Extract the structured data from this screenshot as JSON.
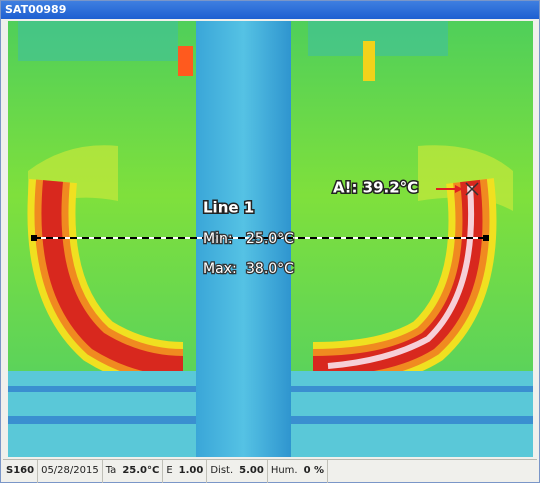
{
  "window": {
    "title": "SAT00989"
  },
  "overlay": {
    "line_label": "Line 1",
    "min_label": "Min:",
    "min_value": "25.0°C",
    "max_label": "Max:",
    "max_value": "38.0°C",
    "spot_label": "A!: 39.2°C"
  },
  "status_bar": {
    "model": "S160",
    "date": "05/28/2015",
    "ta_label": "Ta",
    "ta_value": "25.0°C",
    "e_label": "E",
    "e_value": "1.00",
    "dist_label": "Dist.",
    "dist_value": "5.00",
    "hum_label": "Hum.",
    "hum_value": "0 %"
  }
}
